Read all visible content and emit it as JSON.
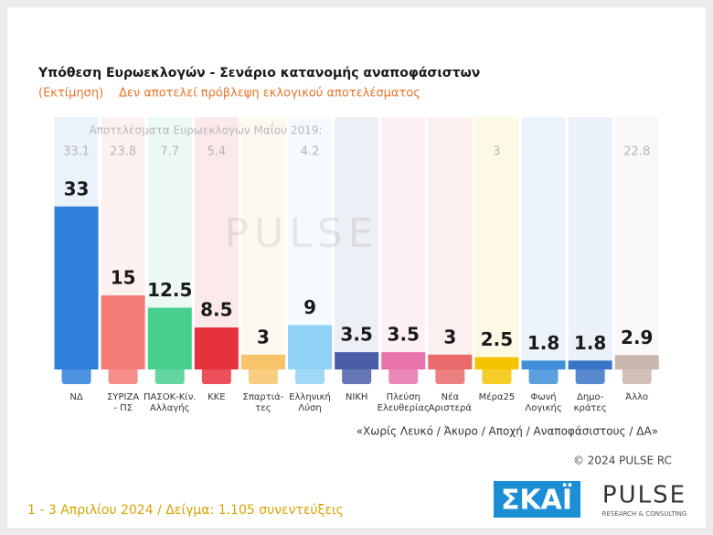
{
  "chart_data": {
    "type": "bar",
    "title": "Υπόθεση Ευρωεκλογών - Σενάριο κατανομής αναποφάσιστων",
    "subtitle_note": "(Εκτίμηση)",
    "subtitle": "Δεν αποτελεί πρόβλεψη εκλογικού αποτελέσματος",
    "categories": [
      [
        "ΝΔ"
      ],
      [
        "ΣΥΡΙΖΑ",
        "- ΠΣ"
      ],
      [
        "ΠΑΣΟΚ-Κίν.",
        "Αλλαγής"
      ],
      [
        "ΚΚΕ"
      ],
      [
        "Σπαρτιά-",
        "τες"
      ],
      [
        "Ελληνική",
        "Λύση"
      ],
      [
        "ΝΙΚΗ"
      ],
      [
        "Πλεύση",
        "Ελευθερίας"
      ],
      [
        "Νέα",
        "Αριστερά"
      ],
      [
        "Μέρα25"
      ],
      [
        "Φωνή",
        "Λογικής"
      ],
      [
        "Δημο-",
        "κράτες"
      ],
      [
        "Άλλο"
      ]
    ],
    "values": [
      33,
      15,
      12.5,
      8.5,
      3,
      9,
      3.5,
      3.5,
      3,
      2.5,
      1.8,
      1.8,
      2.9
    ],
    "colors": [
      "#2e7fd9",
      "#f47b78",
      "#46cf8d",
      "#e6323d",
      "#f7c46a",
      "#8fd2f6",
      "#4a5ea8",
      "#e873aa",
      "#e86a6a",
      "#f5c400",
      "#3e8fd8",
      "#3a74c6",
      "#c9b6ad"
    ],
    "previous": {
      "label": "Αποτελέσματα Ευρωεκλογών Μαΐου 2019:",
      "values": [
        33.1,
        23.8,
        7.7,
        5.4,
        null,
        4.2,
        null,
        null,
        null,
        3,
        null,
        null,
        22.8
      ]
    },
    "footnote": "«Χωρίς Λευκό / Άκυρο / Αποχή / Αναποφάσιστους / ΔΑ»",
    "copyright": "© 2024 PULSE RC",
    "survey": "1 - 3  Απριλίου 2024  /  Δείγμα:  1.105 συνεντεύξεις",
    "watermark": "PULSE",
    "logo_left": "ΣΚΑΪ",
    "logo_right": "PULSE",
    "logo_right_sub": "RESEARCH & CONSULTING"
  }
}
